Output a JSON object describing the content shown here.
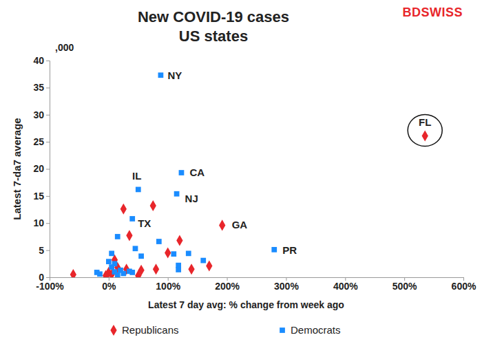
{
  "chart_data": {
    "type": "scatter",
    "title": "New COVID-19 cases",
    "subtitle": "US states",
    "brand": "BDSWISS",
    "y_unit": ",000",
    "x_label": "Latest 7 day avg: % change from week ago",
    "y_label": "Latest 7-da7 average",
    "xlim": [
      -100,
      600
    ],
    "xticks": [
      {
        "value": -100,
        "label": "-100%"
      },
      {
        "value": 0,
        "label": "0%"
      },
      {
        "value": 100,
        "label": "100%"
      },
      {
        "value": 200,
        "label": "200%"
      },
      {
        "value": 300,
        "label": "300%"
      },
      {
        "value": 400,
        "label": "400%"
      },
      {
        "value": 500,
        "label": "500%"
      },
      {
        "value": 600,
        "label": "600%"
      }
    ],
    "ylim": [
      0,
      40
    ],
    "yticks": [
      0,
      5,
      10,
      15,
      20,
      25,
      30,
      35,
      40
    ],
    "grid": false,
    "legend": "bottom",
    "series": [
      {
        "name": "Republicans",
        "color": "#e8262b",
        "marker": "diamond",
        "x": [
          535,
          192,
          25,
          75,
          35,
          120,
          100,
          140,
          170,
          80,
          55,
          30,
          -60,
          0,
          -5,
          5,
          10,
          50,
          15
        ],
        "values": [
          26.1,
          9.6,
          12.6,
          13.2,
          7.7,
          6.8,
          4.5,
          1.5,
          2.1,
          1.5,
          1.3,
          1.5,
          0.5,
          0.9,
          0.3,
          0.5,
          3.2,
          0.3,
          1.8
        ],
        "labels": [
          "FL",
          "GA",
          null,
          null,
          null,
          null,
          null,
          null,
          null,
          null,
          null,
          null,
          null,
          null,
          null,
          null,
          null,
          null,
          null
        ]
      },
      {
        "name": "Democrats",
        "color": "#1a8cff",
        "marker": "square",
        "x": [
          88,
          123,
          50,
          115,
          40,
          280,
          15,
          45,
          55,
          85,
          110,
          135,
          118,
          118,
          160,
          5,
          10,
          0,
          20,
          25,
          -20,
          -15,
          5,
          35,
          40,
          10,
          15
        ],
        "values": [
          37.3,
          19.3,
          16.2,
          15.4,
          10.8,
          5.1,
          7.5,
          5.3,
          3.9,
          6.6,
          4.3,
          4.4,
          2.2,
          1.4,
          3.1,
          4.4,
          2.5,
          2.9,
          1.3,
          0.7,
          0.9,
          0.6,
          1.9,
          1.1,
          0.9,
          1.0,
          0.4
        ],
        "labels": [
          "NY",
          "CA",
          "IL",
          "NJ",
          "TX",
          "PR",
          null,
          null,
          null,
          null,
          null,
          null,
          null,
          null,
          null,
          null,
          null,
          null,
          null,
          null,
          null,
          null,
          null,
          null,
          null,
          null,
          null
        ]
      }
    ]
  }
}
